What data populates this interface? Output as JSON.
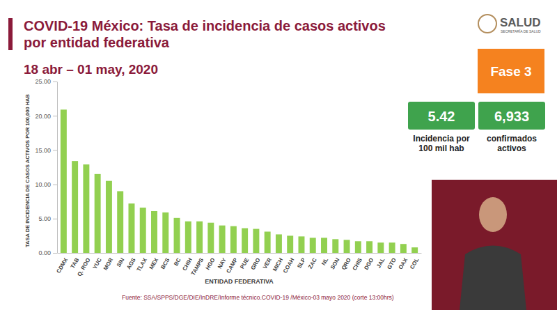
{
  "chart_data": {
    "type": "bar",
    "title": "COVID-19 México: Tasa de incidencia de casos activos por entidad federativa",
    "subtitle": "18 abr – 01 may, 2020",
    "x_label": "ENTIDAD FEDERATIVA",
    "y_label": "TASA DE INCIDENCIA DE CASOS ACTIVOS POR 100,000 HAB",
    "categories": [
      "CDMX",
      "TAB",
      "Q. ROO",
      "YUC",
      "MOR",
      "SIN",
      "AGS",
      "TLAX",
      "MEX",
      "BCS",
      "BC",
      "CHIH",
      "TAMPS",
      "HGO",
      "NAY",
      "CAMP",
      "PUE",
      "GRO",
      "VER",
      "MICH",
      "COAH",
      "SLP",
      "ZAC",
      "NL",
      "SON",
      "QRO",
      "CHIS",
      "DGO",
      "JAL",
      "GTO",
      "OAX",
      "COL"
    ],
    "values": [
      20.9,
      13.4,
      12.9,
      11.5,
      10.5,
      9.0,
      7.2,
      6.6,
      6.1,
      5.9,
      5.1,
      4.6,
      4.6,
      4.4,
      4.0,
      3.9,
      3.6,
      3.5,
      3.1,
      2.7,
      2.5,
      2.4,
      2.2,
      2.2,
      2.0,
      1.9,
      1.7,
      1.7,
      1.5,
      1.5,
      1.3,
      0.8
    ],
    "color": "#92d050",
    "ylim": [
      0,
      25
    ],
    "yticks": [
      {
        "value": 0,
        "label": "0.00"
      },
      {
        "value": 5,
        "label": "5.00"
      },
      {
        "value": 10,
        "label": "10.00"
      },
      {
        "value": 15,
        "label": "15.00"
      },
      {
        "value": 20,
        "label": "20.00"
      },
      {
        "value": 25,
        "label": "25.00"
      }
    ],
    "grid": false
  },
  "header": {
    "logo": "SALUD",
    "logo_sub": "SECRETARÍA DE SALUD"
  },
  "phase": "Fase 3",
  "stats": [
    {
      "value": "5.42",
      "label": "Incidencia por 100 mil hab"
    },
    {
      "value": "6,933",
      "label": "confirmados activos"
    }
  ],
  "source": "Fuente: SSA/SPPS/DGE/DIE/InDRE/Informe técnico.COVID-19 /México-03 mayo 2020 (corte 13:00hrs)"
}
